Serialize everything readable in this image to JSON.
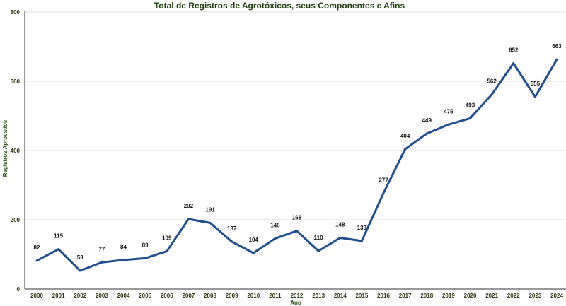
{
  "chart_data": {
    "type": "line",
    "title": "Total de Registros de Agrotóxicos, seus Componentes e Afins",
    "xlabel": "Ano",
    "ylabel": "Registros Aprovados",
    "ylim": [
      0,
      800
    ],
    "yticks": [
      0,
      200,
      400,
      600,
      800
    ],
    "grid": true,
    "line_color": "#1f4e8f",
    "categories": [
      "2000",
      "2001",
      "2002",
      "2003",
      "2004",
      "2005",
      "2006",
      "2007",
      "2008",
      "2009",
      "2010",
      "2011",
      "2012",
      "2013",
      "2014",
      "2015",
      "2016",
      "2017",
      "2018",
      "2019",
      "2020",
      "2021",
      "2022",
      "2023",
      "2024"
    ],
    "values": [
      82,
      115,
      53,
      77,
      84,
      89,
      109,
      202,
      191,
      137,
      104,
      146,
      168,
      110,
      148,
      139,
      277,
      404,
      449,
      475,
      493,
      562,
      652,
      555,
      663
    ]
  }
}
